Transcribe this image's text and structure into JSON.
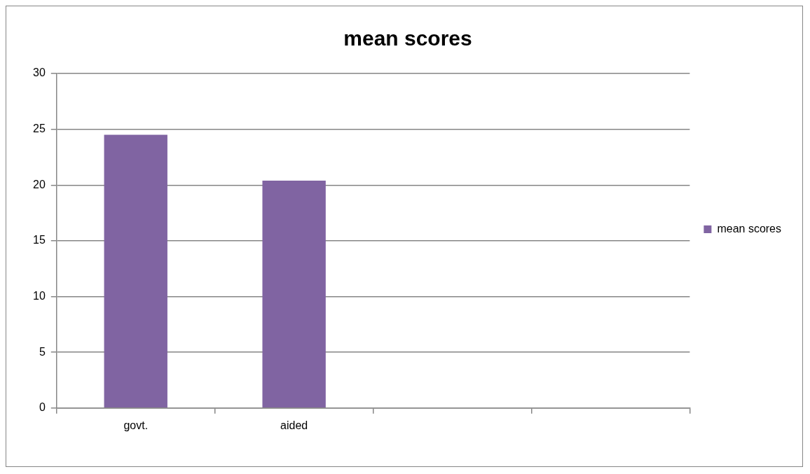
{
  "chart_data": {
    "type": "bar",
    "title": "mean scores",
    "categories": [
      "govt.",
      "aided",
      null,
      null
    ],
    "series": [
      {
        "name": "mean scores",
        "color": "#8064a2",
        "values": [
          24.5,
          20.4,
          null,
          null
        ]
      }
    ],
    "ylim": [
      0,
      30
    ],
    "yticks": [
      0,
      5,
      10,
      15,
      20,
      25,
      30
    ],
    "grid": "y",
    "legend": "right"
  }
}
